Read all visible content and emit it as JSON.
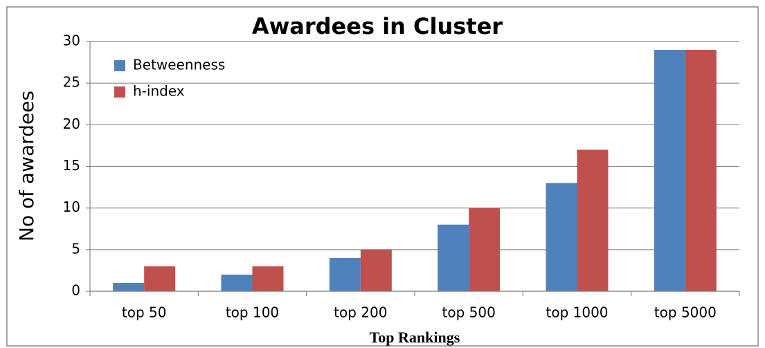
{
  "chart_data": {
    "type": "bar",
    "title": "Awardees in Cluster",
    "x_label": "Top Rankings",
    "y_label": "No of awardees",
    "categories": [
      "top 50",
      "top 100",
      "top 200",
      "top 500",
      "top 1000",
      "top 5000"
    ],
    "series": [
      {
        "name": "Betweenness",
        "color": "#4f81bd",
        "values": [
          1,
          2,
          4,
          8,
          13,
          29
        ]
      },
      {
        "name": "h-index",
        "color": "#c0504d",
        "values": [
          3,
          3,
          5,
          10,
          17,
          29
        ]
      }
    ],
    "ylim": [
      0,
      30
    ],
    "yticks": [
      0,
      5,
      10,
      15,
      20,
      25,
      30
    ],
    "grid": true,
    "legend": "top-left"
  }
}
